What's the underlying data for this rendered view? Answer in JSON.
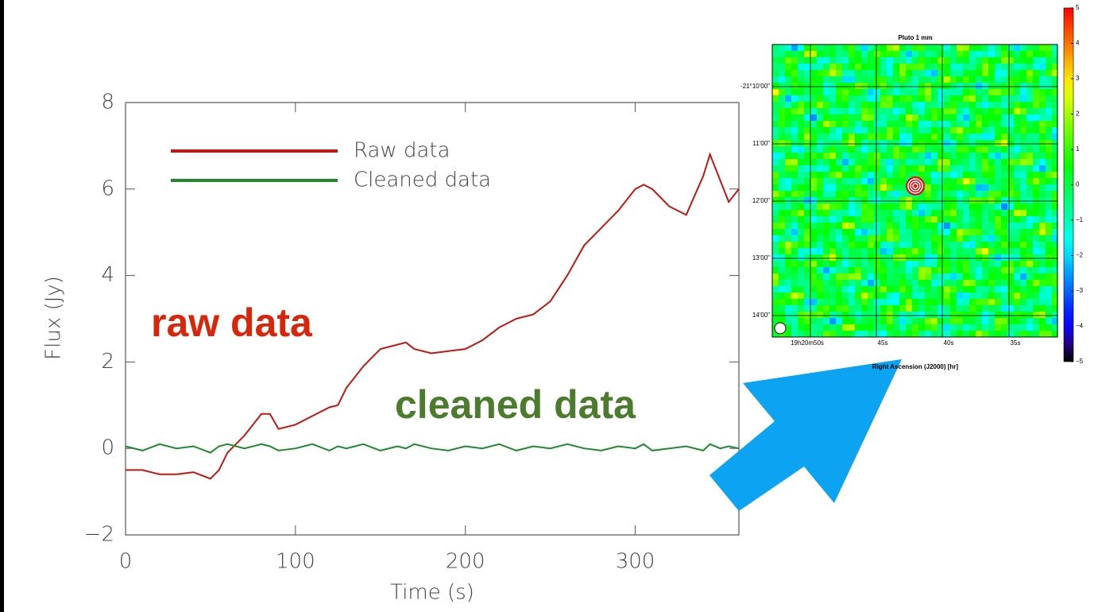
{
  "chart_data": [
    {
      "type": "line",
      "xlabel": "Time (s)",
      "ylabel": "Flux (Jy)",
      "x": [
        0,
        10,
        20,
        30,
        40,
        50,
        55,
        60,
        70,
        80,
        85,
        90,
        100,
        110,
        120,
        125,
        130,
        140,
        150,
        160,
        165,
        170,
        180,
        190,
        200,
        210,
        220,
        230,
        240,
        250,
        260,
        270,
        280,
        290,
        300,
        305,
        310,
        320,
        330,
        340,
        344,
        350,
        355,
        361
      ],
      "series": [
        {
          "name": "Raw data",
          "color": "#c0180f",
          "values": [
            -0.5,
            -0.5,
            -0.6,
            -0.6,
            -0.55,
            -0.7,
            -0.5,
            -0.1,
            0.3,
            0.8,
            0.8,
            0.45,
            0.55,
            0.75,
            0.95,
            1.0,
            1.4,
            1.9,
            2.3,
            2.4,
            2.45,
            2.3,
            2.2,
            2.25,
            2.3,
            2.5,
            2.8,
            3.0,
            3.1,
            3.4,
            4.0,
            4.7,
            5.1,
            5.5,
            6.0,
            6.1,
            6.0,
            5.6,
            5.4,
            6.3,
            6.8,
            6.2,
            5.7,
            6.0
          ]
        },
        {
          "name": "Cleaned data",
          "color": "#1f8a2e",
          "values": [
            0.05,
            -0.05,
            0.1,
            0,
            0.05,
            -0.1,
            0.05,
            0.1,
            0,
            0.1,
            0.05,
            -0.05,
            0,
            0.1,
            -0.05,
            0.05,
            0,
            0.1,
            -0.05,
            0.05,
            0,
            0.1,
            0,
            -0.05,
            0.05,
            0,
            0.1,
            -0.05,
            0.05,
            0,
            0.1,
            0,
            -0.05,
            0.05,
            0,
            0.1,
            -0.05,
            0,
            0.05,
            -0.05,
            0.1,
            0,
            0.05,
            0
          ]
        }
      ],
      "xlim": [
        0,
        361
      ],
      "ylim": [
        -2,
        8
      ],
      "xticks": [
        0,
        100,
        200,
        300
      ],
      "yticks": [
        {
          "value": -2,
          "label": "−2"
        },
        0,
        2,
        4,
        6,
        8
      ],
      "legend": "upper-left",
      "annotations": [
        {
          "text": "raw data",
          "color": "#d9260b"
        },
        {
          "text": "cleaned data",
          "color": "#4b7b2c"
        }
      ]
    },
    {
      "type": "heatmap",
      "title": "Pluto 1 mm",
      "xlabel": "Right Ascension (J2000) [hr]",
      "xtick_labels": [
        "19h20m50s",
        "45s",
        "40s",
        "35s"
      ],
      "ytick_labels": [
        "-21°10'00\"",
        "11'00\"",
        "12'00\"",
        "13'00\"",
        "14'00\""
      ],
      "clim": [
        -5,
        5
      ],
      "cticks": [
        5,
        4,
        3,
        2,
        1,
        0,
        {
          "value": -1,
          "label": "−1"
        },
        {
          "value": -2,
          "label": "−2"
        },
        {
          "value": -3,
          "label": "−3"
        },
        {
          "value": -4,
          "label": "−4"
        },
        {
          "value": -5,
          "label": "−5"
        }
      ]
    }
  ]
}
